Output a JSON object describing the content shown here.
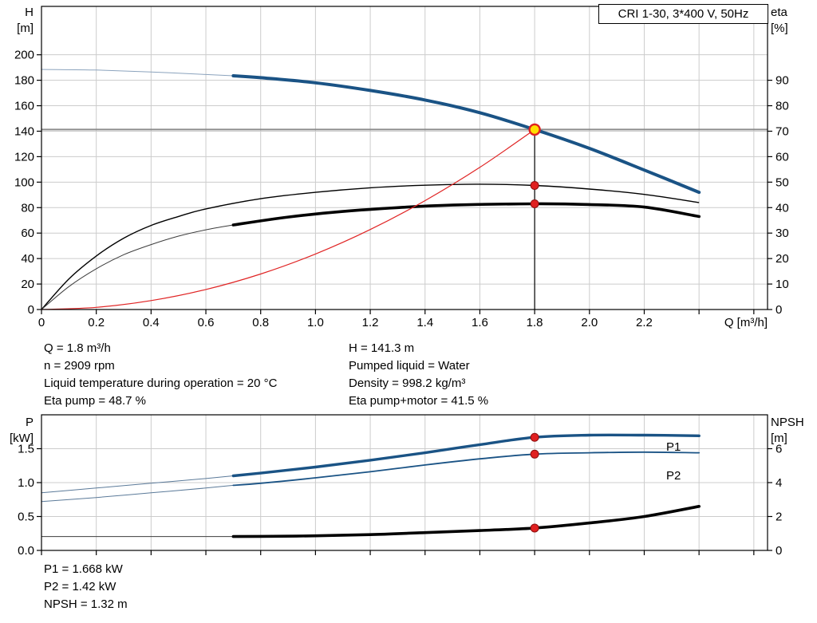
{
  "title_box": "CRI 1-30, 3*400 V, 50Hz",
  "operating_point_info": {
    "left": [
      "Q = 1.8 m³/h",
      "n = 2909 rpm",
      "Liquid temperature during operation = 20 °C",
      "Eta pump = 48.7 %"
    ],
    "right": [
      "H = 141.3 m",
      "Pumped liquid = Water",
      "Density = 998.2 kg/m³",
      "Eta pump+motor = 41.5 %"
    ]
  },
  "power_info": [
    "P1 = 1.668 kW",
    "P2 = 1.42 kW",
    "NPSH = 1.32 m"
  ],
  "colors": {
    "curve_blue": "#1a5385",
    "marker_red": "#e02020",
    "marker_red_edge": "#8d0e0e",
    "duty_fill": "#ffdf00",
    "grid": "#cccccc",
    "guide_gray": "#8c8c8c"
  },
  "chart_data": [
    {
      "type": "line",
      "title": "CRI 1-30, 3*400 V, 50Hz",
      "x_axis": {
        "label": "Q [m³/h]",
        "min": 0,
        "max": 2.65,
        "ticks": [
          [
            0,
            "0"
          ],
          [
            0.2,
            "0.2"
          ],
          [
            0.4,
            "0.4"
          ],
          [
            0.6,
            "0.6"
          ],
          [
            0.8,
            "0.8"
          ],
          [
            1,
            "1.0"
          ],
          [
            1.2,
            "1.2"
          ],
          [
            1.4,
            "1.4"
          ],
          [
            1.6,
            "1.6"
          ],
          [
            1.8,
            "1.8"
          ],
          [
            2,
            "2.0"
          ],
          [
            2.2,
            "2.2"
          ],
          [
            2.4,
            ""
          ],
          [
            2.6,
            ""
          ]
        ]
      },
      "y_left": {
        "label_lines": [
          "H",
          "[m]"
        ],
        "min": 0,
        "max": 238,
        "ticks": [
          [
            0,
            "0"
          ],
          [
            20,
            "20"
          ],
          [
            40,
            "40"
          ],
          [
            60,
            "60"
          ],
          [
            80,
            "80"
          ],
          [
            100,
            "100"
          ],
          [
            120,
            "120"
          ],
          [
            140,
            "140"
          ],
          [
            160,
            "160"
          ],
          [
            180,
            "180"
          ],
          [
            200,
            "200"
          ]
        ]
      },
      "y_right": {
        "label_lines": [
          "eta",
          "[%]"
        ],
        "min": 0,
        "max": 119,
        "ticks": [
          [
            0,
            "0"
          ],
          [
            10,
            "10"
          ],
          [
            20,
            "20"
          ],
          [
            30,
            "30"
          ],
          [
            40,
            "40"
          ],
          [
            50,
            "50"
          ],
          [
            60,
            "60"
          ],
          [
            70,
            "70"
          ],
          [
            80,
            "80"
          ],
          [
            90,
            "90"
          ]
        ]
      },
      "series": [
        {
          "name": "head-curve",
          "axis": "left",
          "color": "#1a5385",
          "width": 4,
          "thin_until": 0.7,
          "thin_width": 1,
          "thin_color": "#8ba3bd",
          "points": [
            [
              0,
              188.5
            ],
            [
              0.2,
              188
            ],
            [
              0.4,
              186.5
            ],
            [
              0.6,
              184.5
            ],
            [
              0.7,
              183.5
            ],
            [
              0.8,
              182
            ],
            [
              1,
              178
            ],
            [
              1.2,
              172
            ],
            [
              1.4,
              164.5
            ],
            [
              1.6,
              154.5
            ],
            [
              1.8,
              141.3
            ],
            [
              2,
              126.5
            ],
            [
              2.2,
              109.5
            ],
            [
              2.4,
              92
            ]
          ]
        },
        {
          "name": "eta-pump-curve",
          "axis": "right",
          "color": "#000000",
          "width": 1.4,
          "points": [
            [
              0,
              0
            ],
            [
              0.1,
              12
            ],
            [
              0.2,
              21
            ],
            [
              0.3,
              28
            ],
            [
              0.4,
              33
            ],
            [
              0.5,
              36.5
            ],
            [
              0.6,
              39.5
            ],
            [
              0.8,
              43.5
            ],
            [
              1,
              46
            ],
            [
              1.2,
              47.8
            ],
            [
              1.4,
              48.8
            ],
            [
              1.6,
              49.2
            ],
            [
              1.8,
              48.7
            ],
            [
              2,
              47.3
            ],
            [
              2.2,
              45.2
            ],
            [
              2.4,
              42
            ]
          ]
        },
        {
          "name": "eta-pump-motor-curve",
          "axis": "right",
          "color": "#000000",
          "width": 3.6,
          "thin_until": 0.7,
          "thin_width": 1,
          "thin_color": "#3c3c3c",
          "points": [
            [
              0,
              0
            ],
            [
              0.1,
              9
            ],
            [
              0.2,
              16
            ],
            [
              0.3,
              21.5
            ],
            [
              0.4,
              25.5
            ],
            [
              0.5,
              28.8
            ],
            [
              0.6,
              31.3
            ],
            [
              0.7,
              33.2
            ],
            [
              0.9,
              36.3
            ],
            [
              1.1,
              38.5
            ],
            [
              1.3,
              40
            ],
            [
              1.5,
              41
            ],
            [
              1.8,
              41.5
            ],
            [
              2,
              41.2
            ],
            [
              2.2,
              40.2
            ],
            [
              2.4,
              36.5
            ]
          ]
        },
        {
          "name": "system-curve",
          "axis": "left",
          "color": "#e02424",
          "width": 1.2,
          "points": [
            [
              0,
              0
            ],
            [
              0.2,
              1.7
            ],
            [
              0.4,
              7
            ],
            [
              0.6,
              15.7
            ],
            [
              0.8,
              27.9
            ],
            [
              1,
              43.6
            ],
            [
              1.2,
              62.8
            ],
            [
              1.4,
              85.5
            ],
            [
              1.6,
              111.6
            ],
            [
              1.8,
              141.3
            ]
          ]
        }
      ],
      "guides": [
        {
          "type": "hline",
          "value": 141.3,
          "axis": "left",
          "color": "#8c8c8c",
          "width": 2
        },
        {
          "type": "vline",
          "q": 1.8,
          "from": 0,
          "to": 141.3,
          "axis": "left",
          "color": "#000000",
          "width": 1.2
        }
      ],
      "markers": [
        {
          "type": "duty",
          "q": 1.8,
          "value": 141.3,
          "axis": "left"
        },
        {
          "type": "dot",
          "q": 1.8,
          "value": 48.7,
          "axis": "right"
        },
        {
          "type": "dot",
          "q": 1.8,
          "value": 41.5,
          "axis": "right"
        }
      ]
    },
    {
      "type": "line",
      "x_axis": {
        "label": "",
        "min": 0,
        "max": 2.65,
        "ticks": [
          [
            0.2,
            ""
          ],
          [
            0.4,
            ""
          ],
          [
            0.6,
            ""
          ],
          [
            0.8,
            ""
          ],
          [
            1,
            ""
          ],
          [
            1.2,
            ""
          ],
          [
            1.4,
            ""
          ],
          [
            1.6,
            ""
          ],
          [
            1.8,
            ""
          ],
          [
            2,
            ""
          ],
          [
            2.2,
            ""
          ],
          [
            2.4,
            ""
          ],
          [
            2.6,
            ""
          ]
        ]
      },
      "y_left": {
        "label_lines": [
          "P",
          "[kW]"
        ],
        "min": 0,
        "max": 2,
        "ticks": [
          [
            0,
            "0.0"
          ],
          [
            0.5,
            "0.5"
          ],
          [
            1,
            "1.0"
          ],
          [
            1.5,
            "1.5"
          ]
        ]
      },
      "y_right": {
        "label_lines": [
          "NPSH",
          "[m]"
        ],
        "min": 0,
        "max": 8,
        "ticks": [
          [
            0,
            "0"
          ],
          [
            2,
            "2"
          ],
          [
            4,
            "4"
          ],
          [
            6,
            "6"
          ]
        ]
      },
      "series": [
        {
          "name": "p1-curve",
          "axis": "left",
          "color": "#1a5385",
          "width": 3.4,
          "thin_until": 0.7,
          "thin_width": 1,
          "thin_color": "#5b7a99",
          "points": [
            [
              0,
              0.85
            ],
            [
              0.2,
              0.92
            ],
            [
              0.4,
              0.99
            ],
            [
              0.6,
              1.06
            ],
            [
              0.7,
              1.1
            ],
            [
              0.8,
              1.14
            ],
            [
              1,
              1.23
            ],
            [
              1.2,
              1.33
            ],
            [
              1.4,
              1.44
            ],
            [
              1.6,
              1.56
            ],
            [
              1.8,
              1.668
            ],
            [
              2,
              1.7
            ],
            [
              2.2,
              1.7
            ],
            [
              2.4,
              1.69
            ]
          ]
        },
        {
          "name": "p2-curve",
          "axis": "left",
          "color": "#1a5385",
          "width": 1.8,
          "thin_until": 0.7,
          "thin_width": 1,
          "thin_color": "#5b7a99",
          "points": [
            [
              0,
              0.72
            ],
            [
              0.2,
              0.78
            ],
            [
              0.4,
              0.85
            ],
            [
              0.6,
              0.92
            ],
            [
              0.7,
              0.96
            ],
            [
              0.8,
              0.99
            ],
            [
              1,
              1.07
            ],
            [
              1.2,
              1.16
            ],
            [
              1.4,
              1.26
            ],
            [
              1.6,
              1.35
            ],
            [
              1.8,
              1.42
            ],
            [
              2,
              1.44
            ],
            [
              2.2,
              1.45
            ],
            [
              2.4,
              1.44
            ]
          ]
        },
        {
          "name": "npsh-curve",
          "axis": "right",
          "color": "#000000",
          "width": 3.6,
          "thin_until": 0.7,
          "thin_width": 1,
          "thin_color": "#3c3c3c",
          "points": [
            [
              0,
              0.82
            ],
            [
              0.2,
              0.82
            ],
            [
              0.4,
              0.82
            ],
            [
              0.6,
              0.82
            ],
            [
              0.7,
              0.82
            ],
            [
              0.8,
              0.83
            ],
            [
              1,
              0.86
            ],
            [
              1.2,
              0.93
            ],
            [
              1.4,
              1.05
            ],
            [
              1.6,
              1.17
            ],
            [
              1.8,
              1.32
            ],
            [
              2,
              1.62
            ],
            [
              2.2,
              2
            ],
            [
              2.4,
              2.6
            ]
          ]
        }
      ],
      "labels": [
        {
          "text": "P1",
          "q": 2.28,
          "value": 1.47,
          "color": "#1a5385"
        },
        {
          "text": "P2",
          "q": 2.28,
          "value": 1.05,
          "color": "#1a5385"
        }
      ],
      "markers": [
        {
          "type": "dot",
          "q": 1.8,
          "value": 1.668,
          "axis": "left"
        },
        {
          "type": "dot",
          "q": 1.8,
          "value": 1.42,
          "axis": "left"
        },
        {
          "type": "dot",
          "q": 1.8,
          "value": 1.32,
          "axis": "right"
        }
      ]
    }
  ]
}
